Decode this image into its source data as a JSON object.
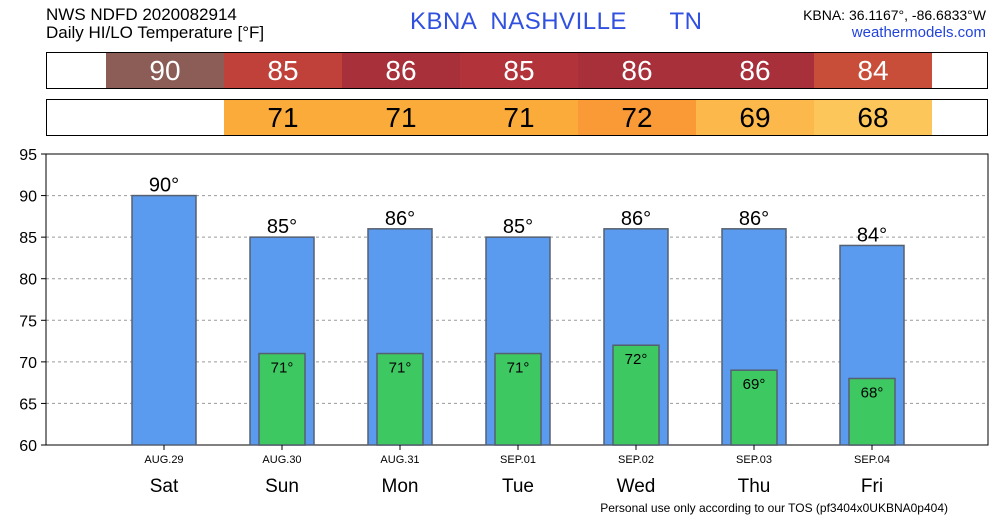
{
  "header": {
    "source_line": "NWS NDFD 2020082914",
    "product_line": "Daily HI/LO Temperature [°F]",
    "station_id": "KBNA",
    "station_name": "NASHVILLE",
    "state": "TN",
    "coords": "KBNA: 36.1167°, -86.6833°W",
    "site": "weathermodels.com"
  },
  "hi_strip": {
    "values": [
      "90",
      "85",
      "86",
      "85",
      "86",
      "86",
      "84"
    ],
    "colors": [
      "#8c5d56",
      "#c0403a",
      "#a8303a",
      "#b2343a",
      "#a8303a",
      "#a8303a",
      "#c84e3a"
    ]
  },
  "lo_strip": {
    "values": [
      "",
      "71",
      "71",
      "71",
      "72",
      "69",
      "68"
    ],
    "colors": [
      "",
      "#fbab3a",
      "#fbab3a",
      "#fbab3a",
      "#f99a36",
      "#fcb84a",
      "#fcc65a"
    ]
  },
  "chart_data": {
    "type": "bar",
    "categories": [
      "Sat",
      "Sun",
      "Mon",
      "Tue",
      "Wed",
      "Thu",
      "Fri"
    ],
    "dates": [
      "AUG.29",
      "AUG.30",
      "AUG.31",
      "SEP.01",
      "SEP.02",
      "SEP.03",
      "SEP.04"
    ],
    "series": [
      {
        "values": [
          90,
          85,
          86,
          85,
          86,
          86,
          84
        ],
        "labels": [
          "90°",
          "85°",
          "86°",
          "85°",
          "86°",
          "86°",
          "84°"
        ],
        "color": "#5a9bef"
      },
      {
        "values": [
          null,
          71,
          71,
          71,
          72,
          69,
          68
        ],
        "labels": [
          "",
          "71°",
          "71°",
          "71°",
          "72°",
          "69°",
          "68°"
        ],
        "color": "#3ec862"
      }
    ],
    "ylim": [
      60,
      95
    ],
    "yticks": [
      60,
      65,
      70,
      75,
      80,
      85,
      90,
      95
    ],
    "grid": true
  },
  "footer": "Personal use only according to our TOS (pf3404x0UKBNA0p404)"
}
